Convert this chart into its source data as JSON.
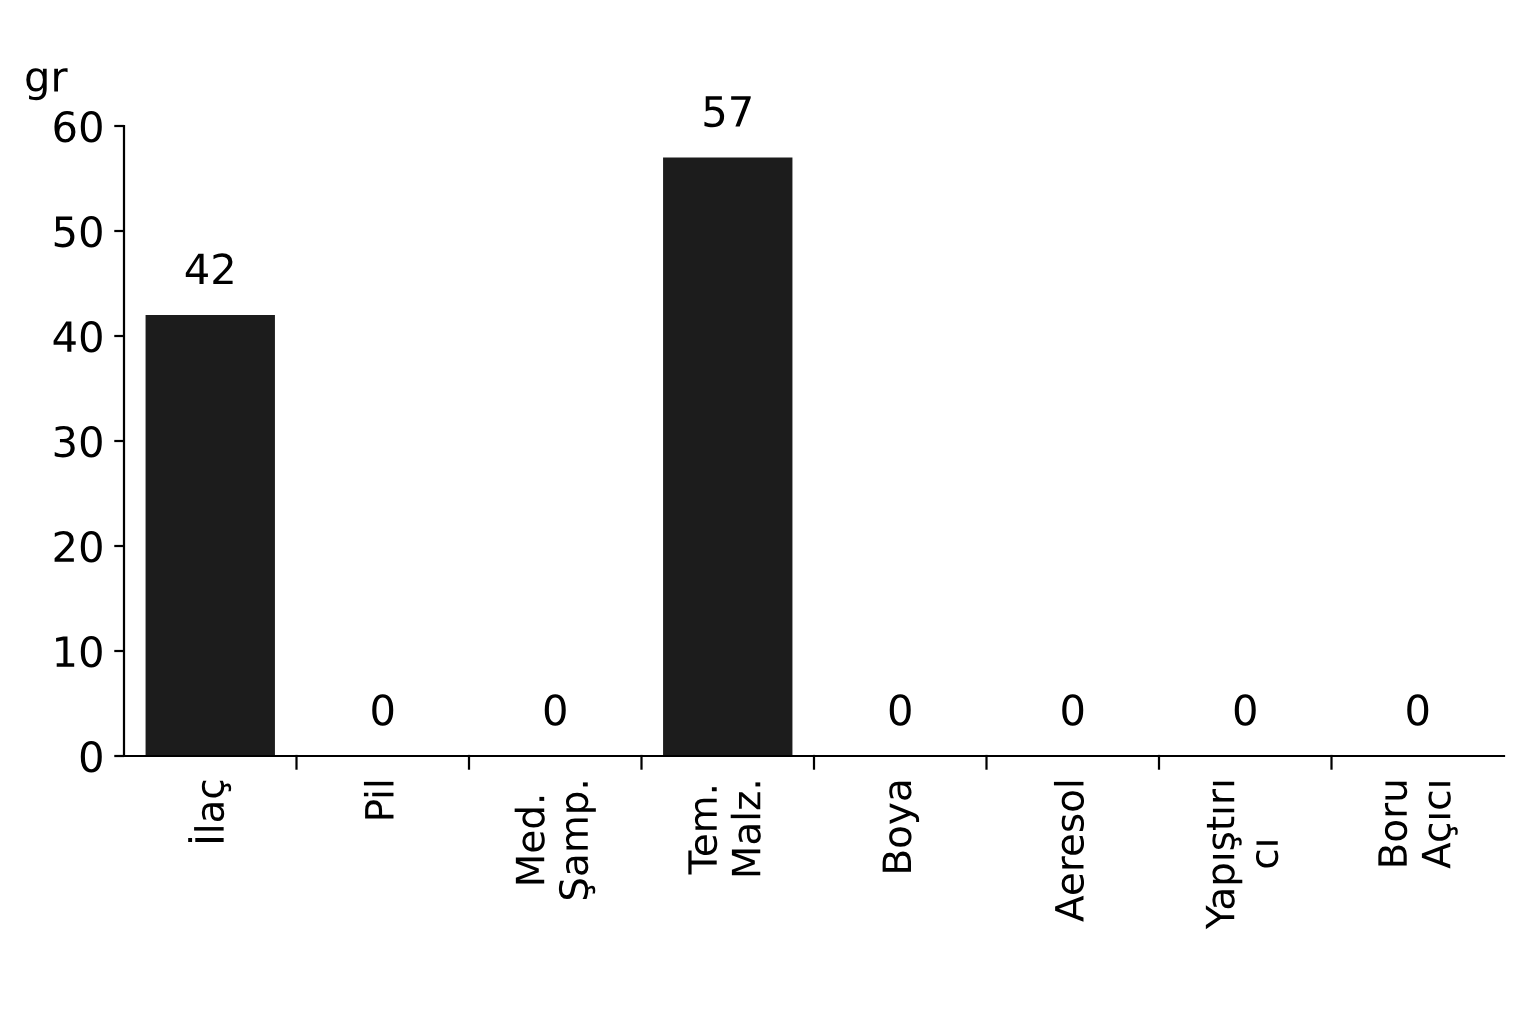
{
  "chart_data": {
    "type": "bar",
    "ylabel": "gr",
    "categories": [
      "İlaç",
      "Pil",
      "Med.\nŞamp.",
      "Tem.\nMalz.",
      "Boya",
      "Aeresol",
      "Yapıştırı\ncı",
      "Boru\nAçıcı"
    ],
    "values": [
      42,
      0,
      0,
      57,
      0,
      0,
      0,
      0
    ],
    "color": "#1c1c1c",
    "ylim": [
      0,
      60
    ],
    "yticks": [
      0,
      10,
      20,
      30,
      40,
      50,
      60
    ],
    "grid": false,
    "data_labels": true
  }
}
